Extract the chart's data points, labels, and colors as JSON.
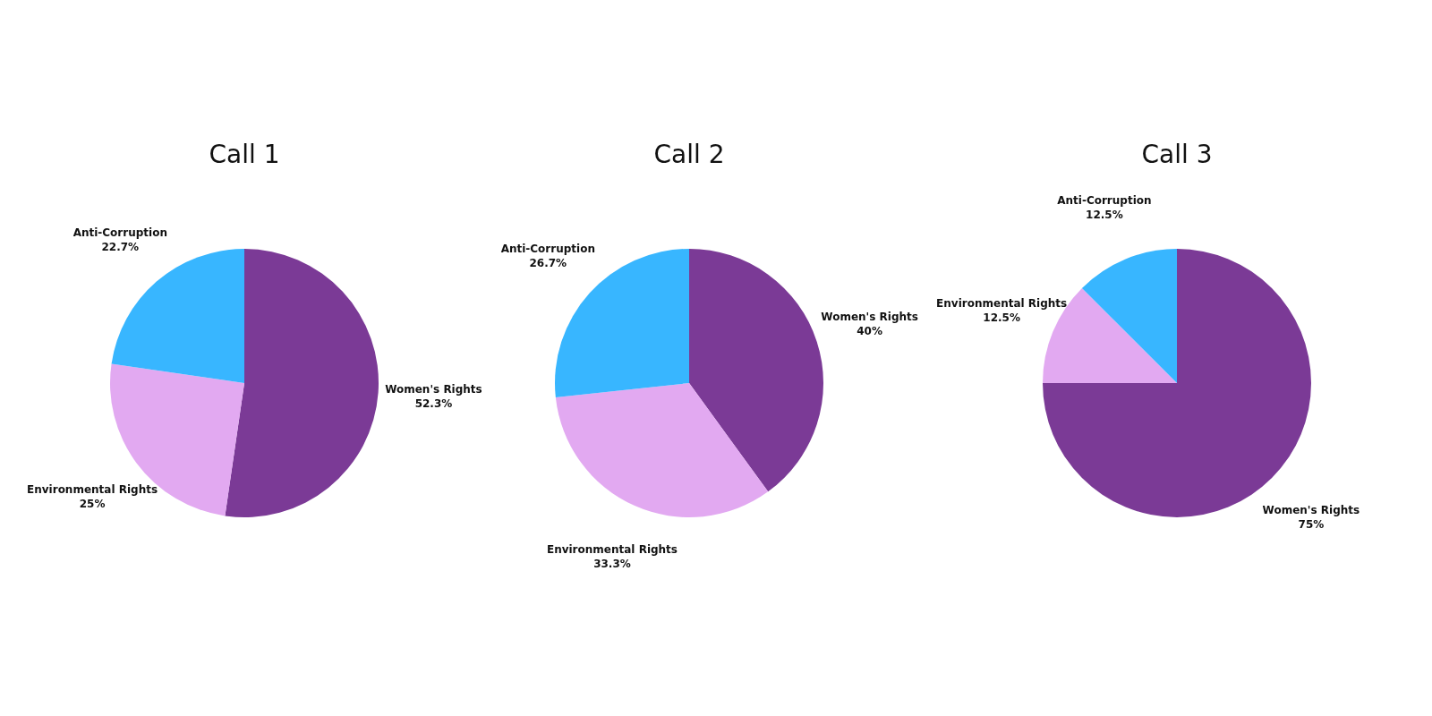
{
  "chart_data": [
    {
      "type": "pie",
      "title": "Call 1",
      "categories": [
        "Women's Rights",
        "Environmental Rights",
        "Anti-Corruption"
      ],
      "values": [
        52.3,
        25,
        22.7
      ],
      "value_labels": [
        "52.3%",
        "25%",
        "22.7%"
      ],
      "colors": [
        "#7b3a96",
        "#e2a9f1",
        "#38b6ff"
      ],
      "legend": false
    },
    {
      "type": "pie",
      "title": "Call 2",
      "categories": [
        "Women's Rights",
        "Environmental Rights",
        "Anti-Corruption"
      ],
      "values": [
        40,
        33.3,
        26.7
      ],
      "value_labels": [
        "40%",
        "33.3%",
        "26.7%"
      ],
      "colors": [
        "#7b3a96",
        "#e2a9f1",
        "#38b6ff"
      ],
      "legend": false
    },
    {
      "type": "pie",
      "title": "Call 3",
      "categories": [
        "Women's Rights",
        "Environmental Rights",
        "Anti-Corruption"
      ],
      "values": [
        75,
        12.5,
        12.5
      ],
      "value_labels": [
        "75%",
        "12.5%",
        "12.5%"
      ],
      "colors": [
        "#7b3a96",
        "#e2a9f1",
        "#38b6ff"
      ],
      "legend": false
    }
  ]
}
